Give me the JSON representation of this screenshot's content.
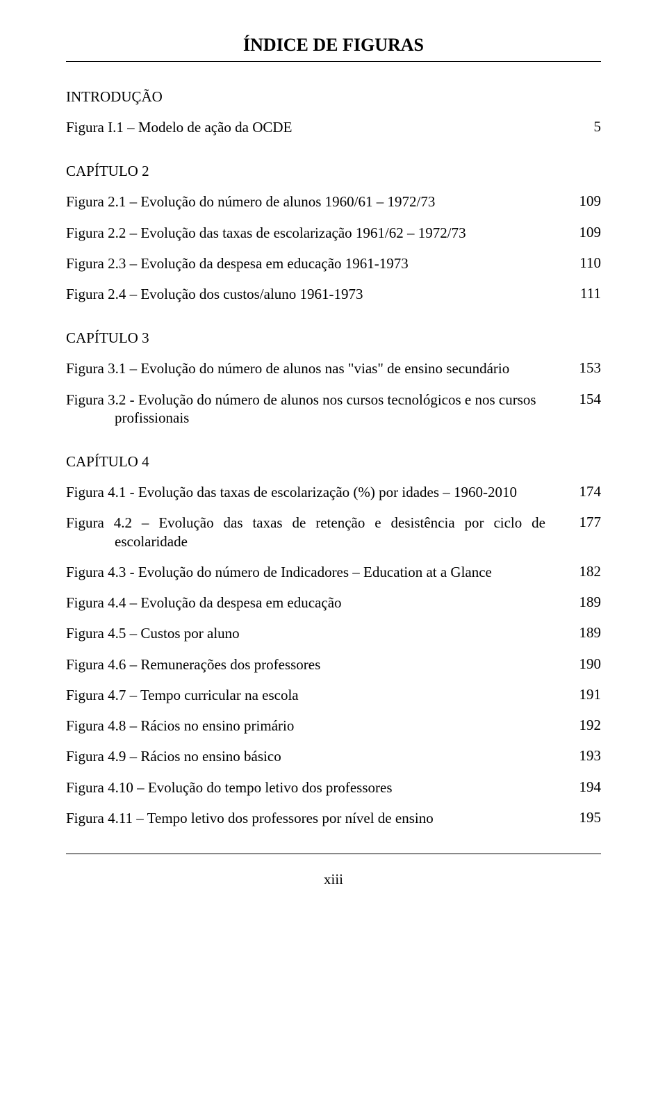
{
  "title": "ÍNDICE DE FIGURAS",
  "sections": {
    "intro": {
      "heading": "INTRODUÇÃO",
      "items": [
        {
          "label": "Figura I.1 – Modelo de ação da OCDE",
          "page": "5"
        }
      ]
    },
    "cap2": {
      "heading": "CAPÍTULO 2",
      "items": [
        {
          "label": "Figura 2.1 – Evolução do número de alunos 1960/61 – 1972/73",
          "page": "109"
        },
        {
          "label": "Figura 2.2 – Evolução das taxas de escolarização 1961/62 – 1972/73",
          "page": "109"
        },
        {
          "label": "Figura 2.3 – Evolução da despesa em educação 1961-1973",
          "page": "110"
        },
        {
          "label": "Figura 2.4 – Evolução dos custos/aluno 1961-1973",
          "page": "111"
        }
      ]
    },
    "cap3": {
      "heading": "CAPÍTULO 3",
      "items": [
        {
          "label": "Figura 3.1 – Evolução do número de alunos nas \"vias\" de ensino secundário",
          "page": "153"
        },
        {
          "label": "Figura 3.2 - Evolução do número de alunos nos cursos tecnológicos e nos cursos profissionais",
          "page": "154"
        }
      ]
    },
    "cap4": {
      "heading": "CAPÍTULO 4",
      "items": [
        {
          "label": "Figura 4.1 - Evolução das taxas de escolarização (%) por idades – 1960-2010",
          "page": "174"
        },
        {
          "label": "Figura 4.2 – Evolução das taxas de retenção e desistência por ciclo de escolaridade",
          "page": "177"
        },
        {
          "label": "Figura 4.3 - Evolução do número de Indicadores – Education at a Glance",
          "page": "182"
        },
        {
          "label": "Figura 4.4 – Evolução da despesa em educação",
          "page": "189"
        },
        {
          "label": "Figura 4.5 – Custos por aluno",
          "page": "189"
        },
        {
          "label": "Figura 4.6 – Remunerações dos professores",
          "page": "190"
        },
        {
          "label": "Figura 4.7 – Tempo curricular na escola",
          "page": "191"
        },
        {
          "label": "Figura 4.8 – Rácios no ensino primário",
          "page": "192"
        },
        {
          "label": "Figura 4.9 – Rácios no ensino básico",
          "page": "193"
        },
        {
          "label": "Figura 4.10 – Evolução do tempo letivo dos professores",
          "page": "194"
        },
        {
          "label": "Figura 4.11 – Tempo letivo dos professores por nível de ensino",
          "page": "195"
        }
      ]
    }
  },
  "page_roman": "xiii"
}
